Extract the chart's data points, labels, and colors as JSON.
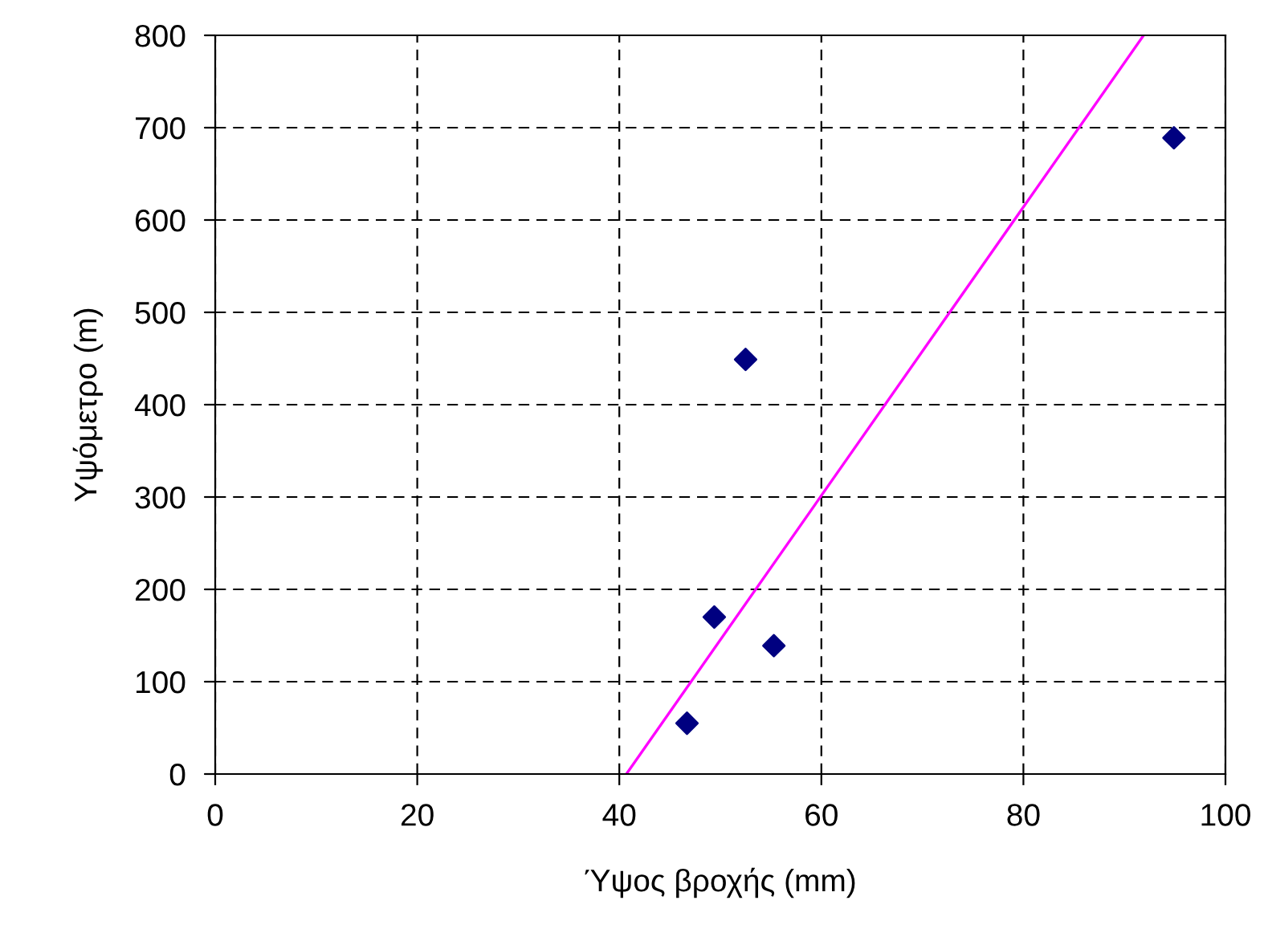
{
  "chart_data": {
    "type": "scatter",
    "xlabel": "Ύψος βροχής (mm)",
    "ylabel": "Υψόμετρο (m)",
    "series": [
      {
        "type": "scatter",
        "color": "#000080",
        "marker": "diamond",
        "x": [
          46.7,
          49.4,
          52.5,
          55.3,
          94.9
        ],
        "values": [
          55,
          170,
          449,
          139,
          689
        ]
      },
      {
        "type": "line",
        "color": "#ff00ff",
        "marker": "none",
        "line_style": "solid",
        "x": [
          40.7,
          91.9
        ],
        "values": [
          0,
          800
        ]
      }
    ],
    "xlim": [
      0,
      100
    ],
    "xticks": [
      0,
      20,
      40,
      60,
      80,
      100
    ],
    "ylim": [
      0,
      800
    ],
    "yticks": [
      0,
      100,
      200,
      300,
      400,
      500,
      600,
      700,
      800
    ],
    "grid": true,
    "legend": false
  }
}
